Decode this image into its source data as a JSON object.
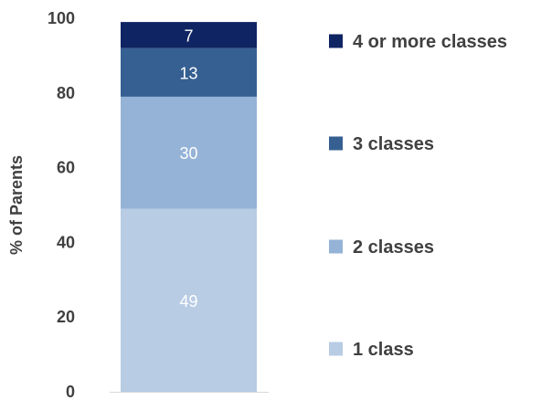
{
  "chart_data": {
    "type": "bar",
    "stacked": true,
    "title": "",
    "xlabel": "",
    "ylabel": "% of Parents",
    "ylim": [
      0,
      100
    ],
    "yticks": [
      "0",
      "20",
      "40",
      "60",
      "80",
      "100"
    ],
    "grid": false,
    "legend_position": "right",
    "categories": [
      ""
    ],
    "series": [
      {
        "name": "1 class",
        "values": [
          49
        ],
        "label": "49",
        "color": "#b8cce4"
      },
      {
        "name": "2 classes",
        "values": [
          30
        ],
        "label": "30",
        "color": "#95b3d7"
      },
      {
        "name": "3 classes",
        "values": [
          13
        ],
        "label": "13",
        "color": "#366092"
      },
      {
        "name": "4 or more classes",
        "values": [
          7
        ],
        "label": "7",
        "color": "#0f2462"
      }
    ]
  }
}
